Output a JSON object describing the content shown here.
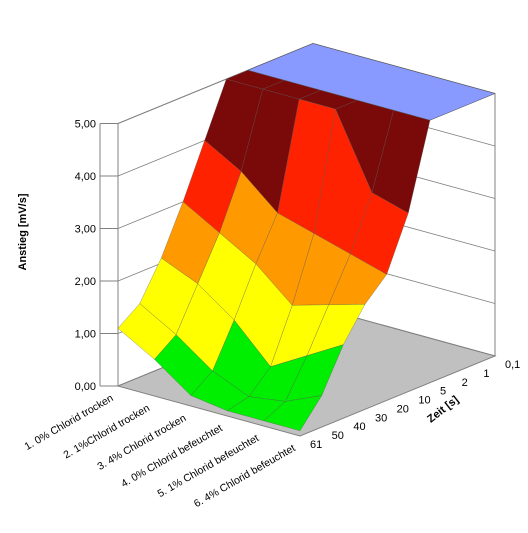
{
  "chart_data": {
    "type": "surface-3d",
    "title": "",
    "ylabel": "Anstieg [mV/s]",
    "depth_label": "Zeit [s]",
    "ylim": [
      0,
      5
    ],
    "y_ticks": [
      "0,00",
      "1,00",
      "2,00",
      "3,00",
      "4,00",
      "5,00"
    ],
    "categories": [
      "1. 0% Chlorid trocken",
      "2. 1%Chlorid trocken",
      "3. 4% Chlorid trocken",
      "4. 0% Chlorid befeuchtet",
      "5. 1% Chlorid befeuchtet",
      "6. 4% Chlorid befeuchtet"
    ],
    "depth_ticks": [
      "0,1",
      "1",
      "2",
      "5",
      "10",
      "20",
      "30",
      "40",
      "50",
      "61"
    ],
    "surface": [
      [
        5.0,
        5.0,
        5.0,
        5.0,
        5.0,
        5.0
      ],
      [
        5.0,
        5.0,
        5.0,
        5.0,
        5.0,
        5.0
      ],
      [
        5.0,
        5.0,
        5.0,
        5.0,
        5.0,
        5.0
      ],
      [
        5.0,
        5.0,
        5.0,
        5.0,
        5.0,
        5.0
      ],
      [
        5.0,
        5.0,
        5.0,
        5.0,
        3.6,
        3.4
      ],
      [
        4.0,
        3.6,
        3.0,
        2.8,
        2.6,
        2.4
      ],
      [
        3.0,
        2.6,
        2.2,
        1.6,
        1.8,
        2.0
      ],
      [
        2.1,
        1.8,
        1.3,
        0.6,
        1.0,
        1.4
      ],
      [
        1.4,
        1.0,
        0.5,
        0.2,
        0.3,
        0.6
      ],
      [
        1.1,
        0.7,
        0.2,
        0.1,
        0.1,
        0.1
      ]
    ],
    "color_bands": [
      {
        "from": 0,
        "to": 1,
        "color": "#00ee00"
      },
      {
        "from": 1,
        "to": 2,
        "color": "#ffff00"
      },
      {
        "from": 2,
        "to": 3,
        "color": "#ff9900"
      },
      {
        "from": 3,
        "to": 4,
        "color": "#ff2200"
      },
      {
        "from": 4,
        "to": 5,
        "color": "#7a0a0a"
      },
      {
        "from": 5,
        "to": 6,
        "color": "#8899ff"
      }
    ],
    "grid": true
  }
}
